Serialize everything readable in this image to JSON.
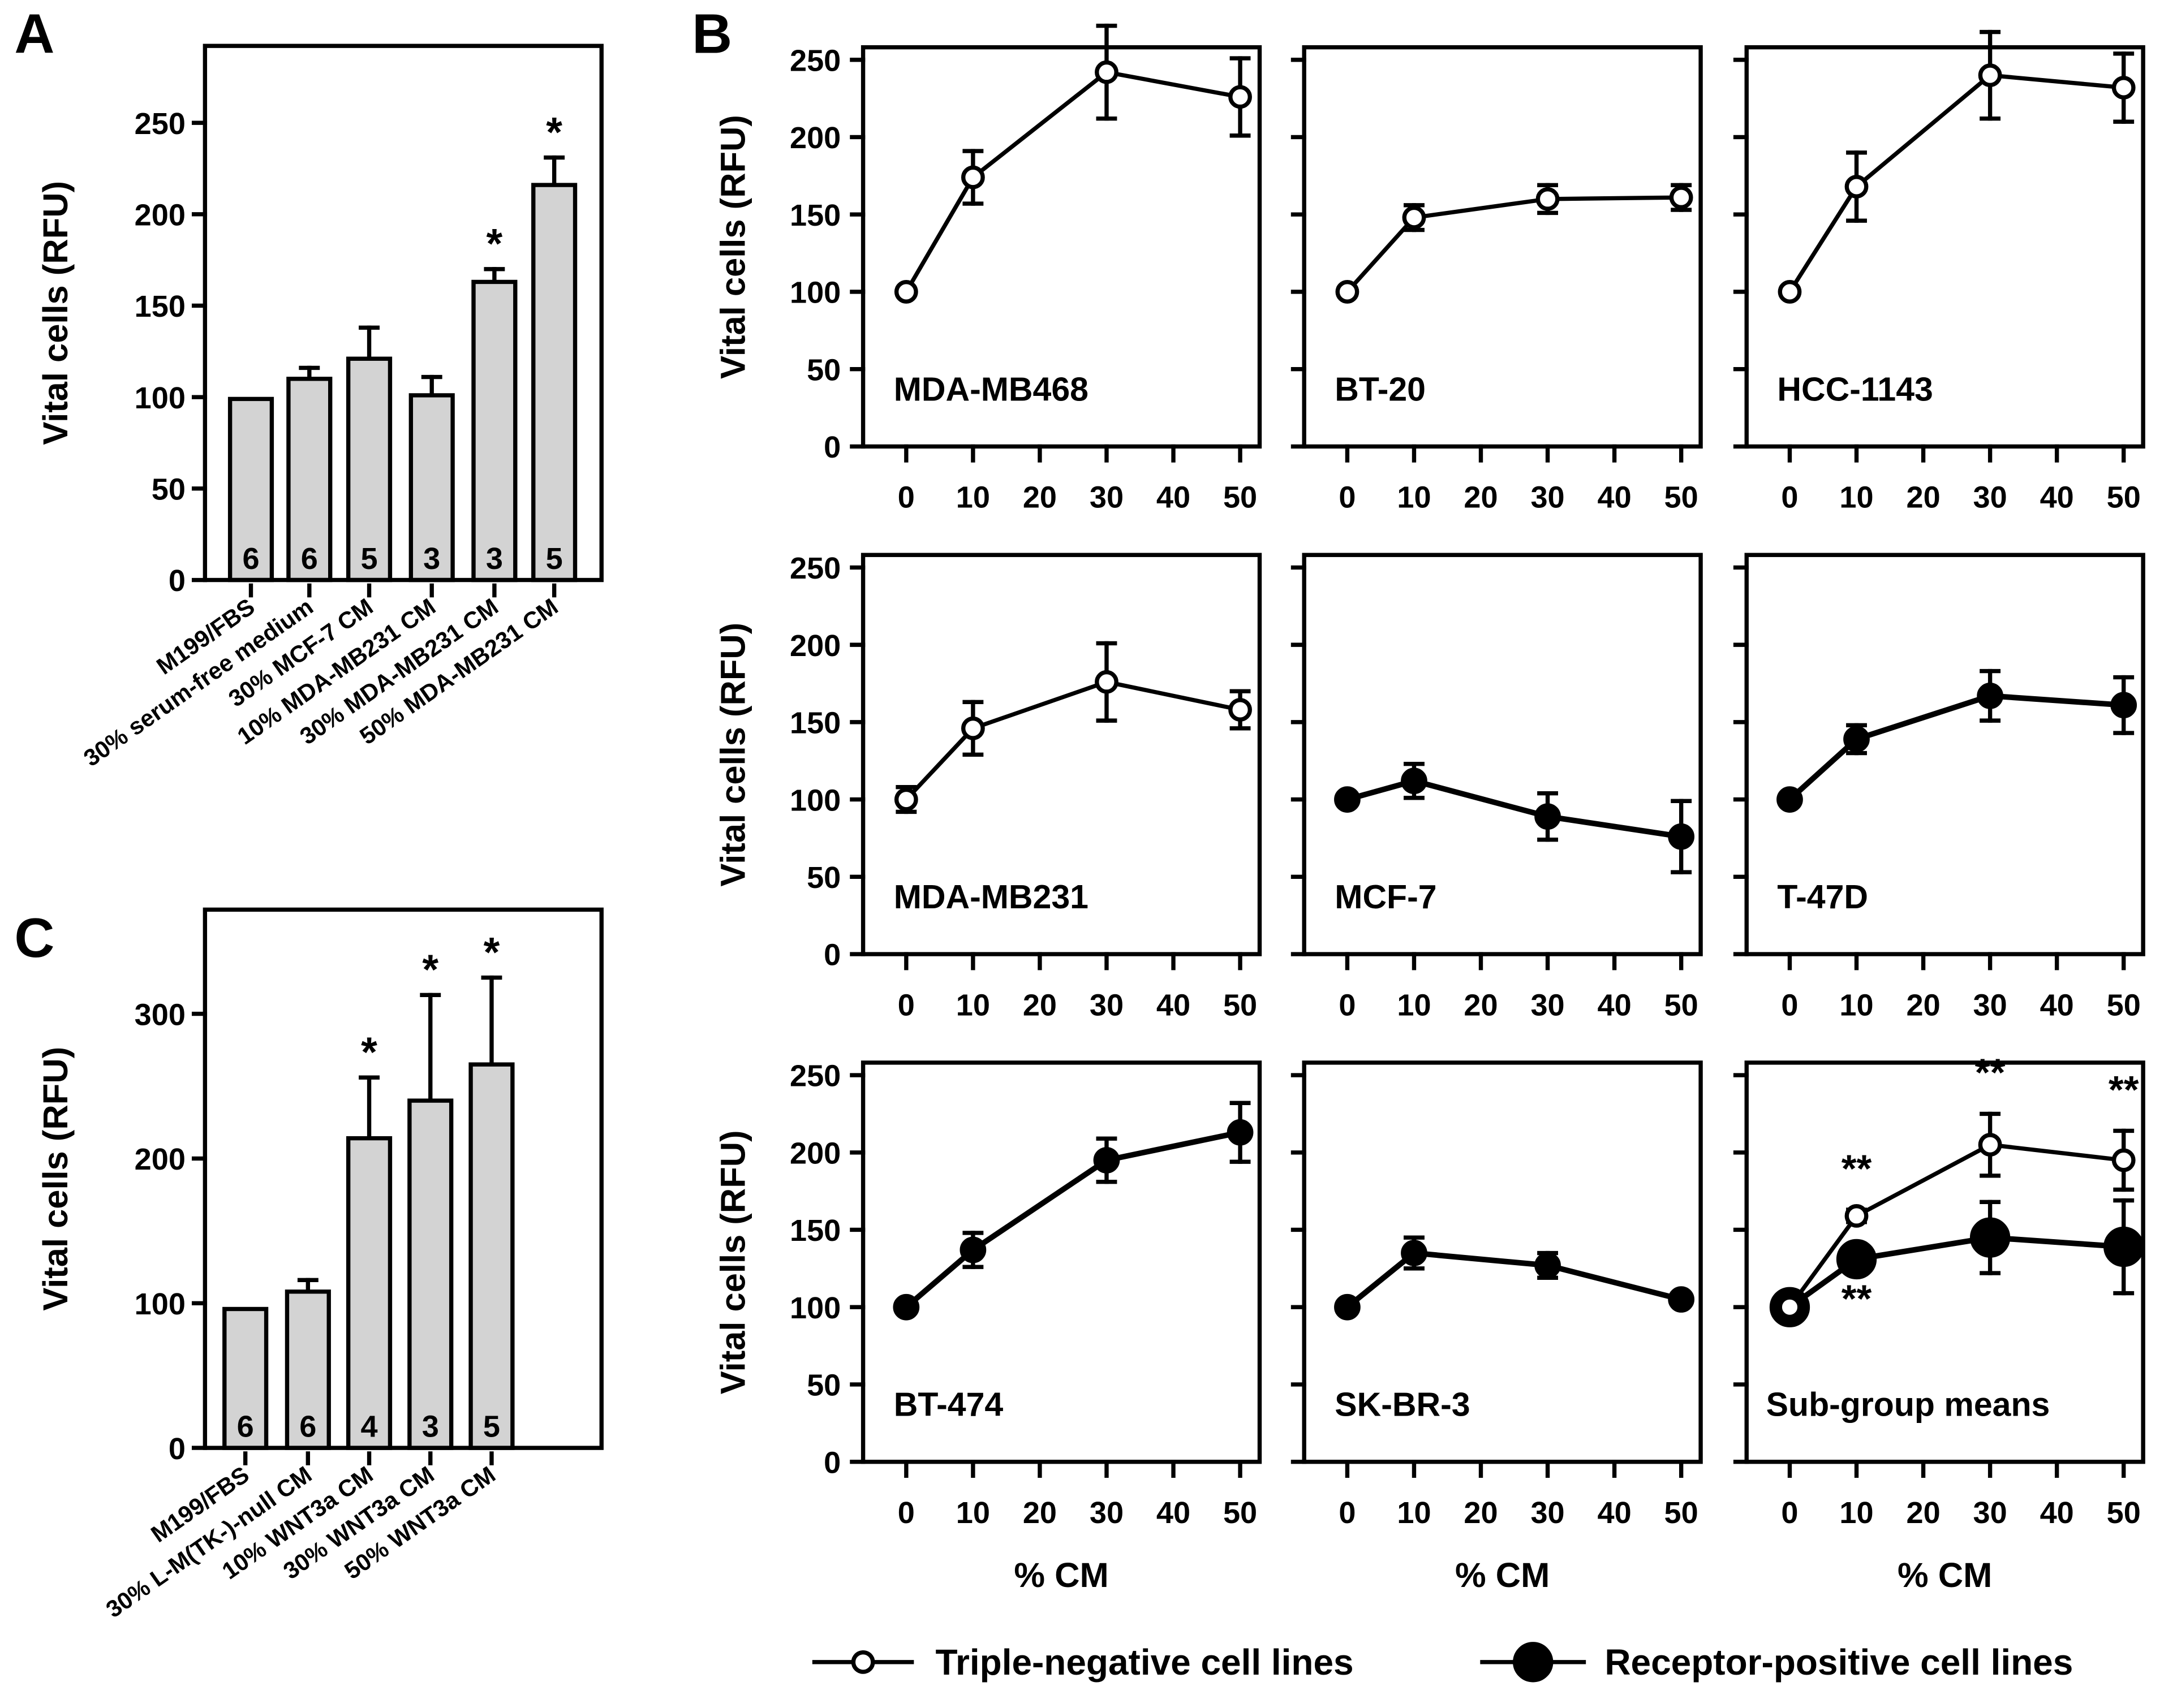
{
  "chart_data": [
    {
      "panel": "A",
      "type": "bar",
      "ylabel": "Vital cells (RFU)",
      "ylim": [
        0,
        270
      ],
      "yticks": [
        0,
        50,
        100,
        150,
        200,
        250
      ],
      "categories": [
        "M199/FBS",
        "30% serum-free medium",
        "30% MCF-7 CM",
        "10% MDA-MB231 CM",
        "30% MDA-MB231 CM",
        "50% MDA-MB231 CM"
      ],
      "values": [
        99,
        110,
        121,
        101,
        163,
        216
      ],
      "errors": [
        0,
        6,
        17,
        10,
        7,
        15
      ],
      "n": [
        "6",
        "6",
        "5",
        "3",
        "3",
        "5"
      ],
      "significance": [
        "",
        "",
        "",
        "",
        "*",
        "*"
      ]
    },
    {
      "panel": "C",
      "type": "bar",
      "ylabel": "Vital cells (RFU)",
      "ylim": [
        0,
        372
      ],
      "yticks": [
        0,
        100,
        200,
        300
      ],
      "categories": [
        "M199/FBS",
        "30% L-M(TK-)-null CM",
        "10% WNT3a CM",
        "30% WNT3a CM",
        "50% WNT3a CM"
      ],
      "values": [
        96,
        108,
        214,
        240,
        265
      ],
      "errors": [
        0,
        8,
        42,
        73,
        60
      ],
      "n": [
        "6",
        "6",
        "4",
        "3",
        "5"
      ],
      "significance": [
        "",
        "",
        "*",
        "*",
        "*"
      ]
    },
    {
      "panel": "B",
      "type": "line",
      "xlabel": "% CM",
      "ylabel": "Vital cells (RFU)",
      "x": [
        0,
        10,
        30,
        50
      ],
      "xticks": [
        0,
        10,
        20,
        30,
        40,
        50
      ],
      "yticks": [
        0,
        50,
        100,
        150,
        200,
        250
      ],
      "ylim": [
        0,
        258
      ],
      "subplots": [
        {
          "title": "MDA-MB468",
          "series": [
            {
              "group": "triple-negative",
              "values": [
                100,
                174,
                242,
                226
              ],
              "errors": [
                0,
                17,
                30,
                25
              ]
            }
          ]
        },
        {
          "title": "BT-20",
          "series": [
            {
              "group": "triple-negative",
              "values": [
                100,
                148,
                160,
                161
              ],
              "errors": [
                0,
                8,
                9,
                8
              ]
            }
          ]
        },
        {
          "title": "HCC-1143",
          "series": [
            {
              "group": "triple-negative",
              "values": [
                100,
                168,
                240,
                232
              ],
              "errors": [
                0,
                22,
                28,
                22
              ]
            }
          ]
        },
        {
          "title": "MDA-MB231",
          "series": [
            {
              "group": "triple-negative",
              "values": [
                100,
                146,
                176,
                158
              ],
              "errors": [
                8,
                17,
                25,
                12
              ]
            }
          ]
        },
        {
          "title": "MCF-7",
          "series": [
            {
              "group": "receptor-positive",
              "values": [
                100,
                112,
                89,
                76
              ],
              "errors": [
                0,
                11,
                15,
                23
              ]
            }
          ]
        },
        {
          "title": "T-47D",
          "series": [
            {
              "group": "receptor-positive",
              "values": [
                100,
                139,
                167,
                161
              ],
              "errors": [
                0,
                9,
                16,
                18
              ]
            }
          ]
        },
        {
          "title": "BT-474",
          "series": [
            {
              "group": "receptor-positive",
              "values": [
                100,
                137,
                195,
                213
              ],
              "errors": [
                0,
                11,
                14,
                19
              ]
            }
          ]
        },
        {
          "title": "SK-BR-3",
          "series": [
            {
              "group": "receptor-positive",
              "values": [
                100,
                135,
                127,
                105
              ],
              "errors": [
                0,
                10,
                8,
                3
              ]
            }
          ]
        },
        {
          "title": "Sub-group means",
          "series": [
            {
              "group": "triple-negative",
              "values": [
                100,
                159,
                205,
                195
              ],
              "errors": [
                0,
                4,
                20,
                19
              ],
              "significance": [
                "",
                "**",
                "**",
                "**"
              ]
            },
            {
              "group": "receptor-positive",
              "values": [
                100,
                131,
                145,
                139
              ],
              "errors": [
                0,
                6,
                23,
                30
              ],
              "significance": [
                "",
                "**",
                "",
                ""
              ]
            }
          ]
        }
      ],
      "legend": {
        "placement": "bottom",
        "entries": [
          {
            "group": "triple-negative",
            "label": "Triple-negative cell lines",
            "marker": "open-circle"
          },
          {
            "group": "receptor-positive",
            "label": "Receptor-positive cell lines",
            "marker": "filled-circle"
          }
        ]
      }
    }
  ],
  "panel_labels": [
    "A",
    "B",
    "C"
  ],
  "colors": {
    "bar_fill": "#d3d3d3",
    "ink": "#000000",
    "open_marker_fill": "#ffffff"
  }
}
